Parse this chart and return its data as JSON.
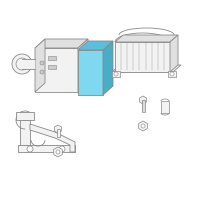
{
  "background_color": "#ffffff",
  "border_color": "#d0d0d0",
  "line_color": "#888888",
  "blue_face": "#7dd8f0",
  "blue_top": "#5bbedd",
  "blue_right": "#4aadc8",
  "gray_light": "#f2f2f2",
  "gray_mid": "#e0e0e0",
  "gray_dark": "#cccccc",
  "figsize": [
    2.0,
    2.0
  ],
  "dpi": 100
}
